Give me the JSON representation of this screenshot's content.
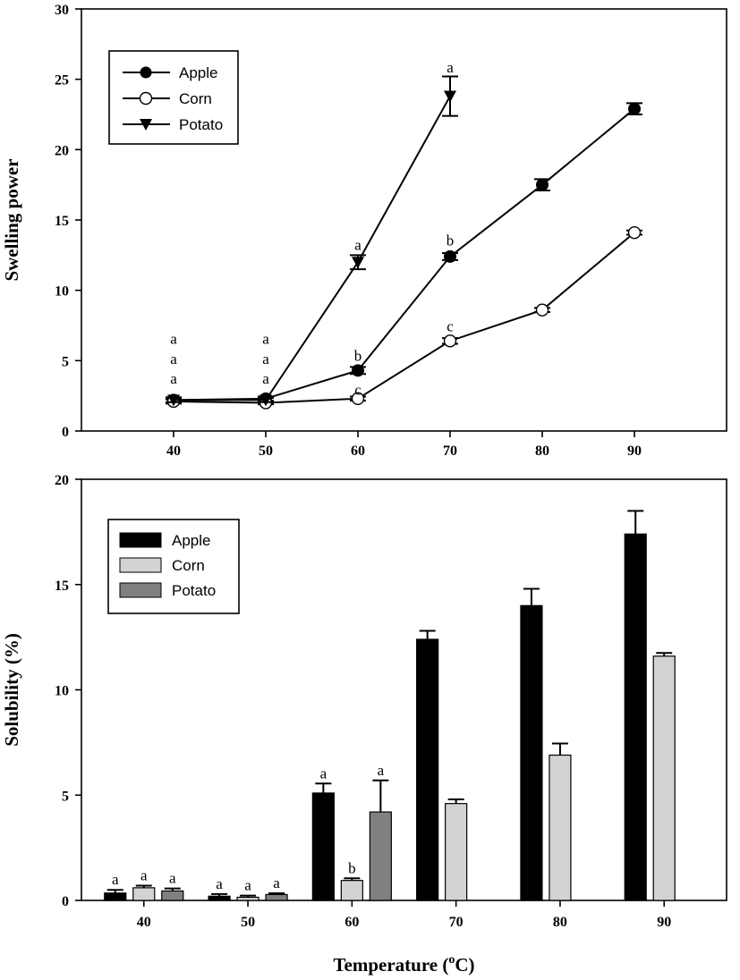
{
  "chart_data": [
    {
      "type": "line",
      "xlabel": "",
      "ylabel": "Swelling power",
      "ylim": [
        0,
        30
      ],
      "xlim": [
        30,
        100
      ],
      "x_ticks": [
        40,
        50,
        60,
        70,
        80,
        90
      ],
      "y_ticks": [
        0,
        5,
        10,
        15,
        20,
        25,
        30
      ],
      "grid": false,
      "legend_position": "top-left",
      "series": [
        {
          "name": "Apple",
          "marker": "filled-circle",
          "x": [
            40,
            50,
            60,
            70,
            80,
            90
          ],
          "values": [
            2.2,
            2.3,
            4.3,
            12.4,
            17.5,
            22.9
          ],
          "errors": [
            0.2,
            0.15,
            0.25,
            0.25,
            0.4,
            0.4
          ]
        },
        {
          "name": "Corn",
          "marker": "open-circle",
          "x": [
            40,
            50,
            60,
            70,
            80,
            90
          ],
          "values": [
            2.1,
            2.0,
            2.3,
            6.4,
            8.6,
            14.1
          ],
          "errors": [
            0.15,
            0.1,
            0.15,
            0.2,
            0.15,
            0.15
          ]
        },
        {
          "name": "Potato",
          "marker": "filled-triangle-down",
          "x": [
            40,
            50,
            60,
            70
          ],
          "values": [
            2.2,
            2.2,
            12.0,
            23.8
          ],
          "errors": [
            0.15,
            0.15,
            0.5,
            1.4
          ]
        }
      ],
      "annotations": [
        {
          "x": 40,
          "y": 3.7,
          "text": "a"
        },
        {
          "x": 40,
          "y": 5.1,
          "text": "a"
        },
        {
          "x": 40,
          "y": 6.5,
          "text": "a"
        },
        {
          "x": 50,
          "y": 3.7,
          "text": "a"
        },
        {
          "x": 50,
          "y": 5.1,
          "text": "a"
        },
        {
          "x": 50,
          "y": 6.5,
          "text": "a"
        },
        {
          "x": 60,
          "y": 5.3,
          "text": "b"
        },
        {
          "x": 60,
          "y": 2.9,
          "text": "c"
        },
        {
          "x": 60,
          "y": 13.2,
          "text": "a"
        },
        {
          "x": 70,
          "y": 13.5,
          "text": "b"
        },
        {
          "x": 70,
          "y": 7.4,
          "text": "c"
        },
        {
          "x": 70,
          "y": 25.8,
          "text": "a"
        }
      ]
    },
    {
      "type": "bar",
      "xlabel": "Temperature (°C)",
      "xlabel_main": "Temperature (",
      "xlabel_sup": "o",
      "xlabel_end": "C)",
      "ylabel": "Solubility (%)",
      "ylim": [
        0,
        20
      ],
      "y_ticks": [
        0,
        5,
        10,
        15,
        20
      ],
      "categories": [
        "40",
        "50",
        "60",
        "70",
        "80",
        "90"
      ],
      "grid": false,
      "legend_position": "top-left",
      "series": [
        {
          "name": "Apple",
          "color": "#000000",
          "values": [
            0.35,
            0.2,
            5.1,
            12.4,
            14.0,
            17.4
          ],
          "errors": [
            0.15,
            0.1,
            0.45,
            0.4,
            0.8,
            1.1
          ]
        },
        {
          "name": "Corn",
          "color": "#d3d3d3",
          "values": [
            0.6,
            0.15,
            0.95,
            4.6,
            6.9,
            11.6
          ],
          "errors": [
            0.1,
            0.08,
            0.1,
            0.2,
            0.55,
            0.15
          ]
        },
        {
          "name": "Potato",
          "color": "#808080",
          "values": [
            0.45,
            0.28,
            4.2,
            null,
            null,
            null
          ],
          "errors": [
            0.12,
            0.06,
            1.5,
            null,
            null,
            null
          ]
        }
      ],
      "annotations": [
        {
          "category": "40",
          "series": "Apple",
          "text": "a"
        },
        {
          "category": "40",
          "series": "Corn",
          "text": "a"
        },
        {
          "category": "40",
          "series": "Potato",
          "text": "a"
        },
        {
          "category": "50",
          "series": "Apple",
          "text": "a"
        },
        {
          "category": "50",
          "series": "Corn",
          "text": "a"
        },
        {
          "category": "50",
          "series": "Potato",
          "text": "a"
        },
        {
          "category": "60",
          "series": "Apple",
          "text": "a"
        },
        {
          "category": "60",
          "series": "Corn",
          "text": "b"
        },
        {
          "category": "60",
          "series": "Potato",
          "text": "a"
        }
      ]
    }
  ],
  "colors": {
    "axis": "#000000",
    "apple_bar": "#000000",
    "corn_bar": "#d3d3d3",
    "potato_bar": "#808080"
  }
}
